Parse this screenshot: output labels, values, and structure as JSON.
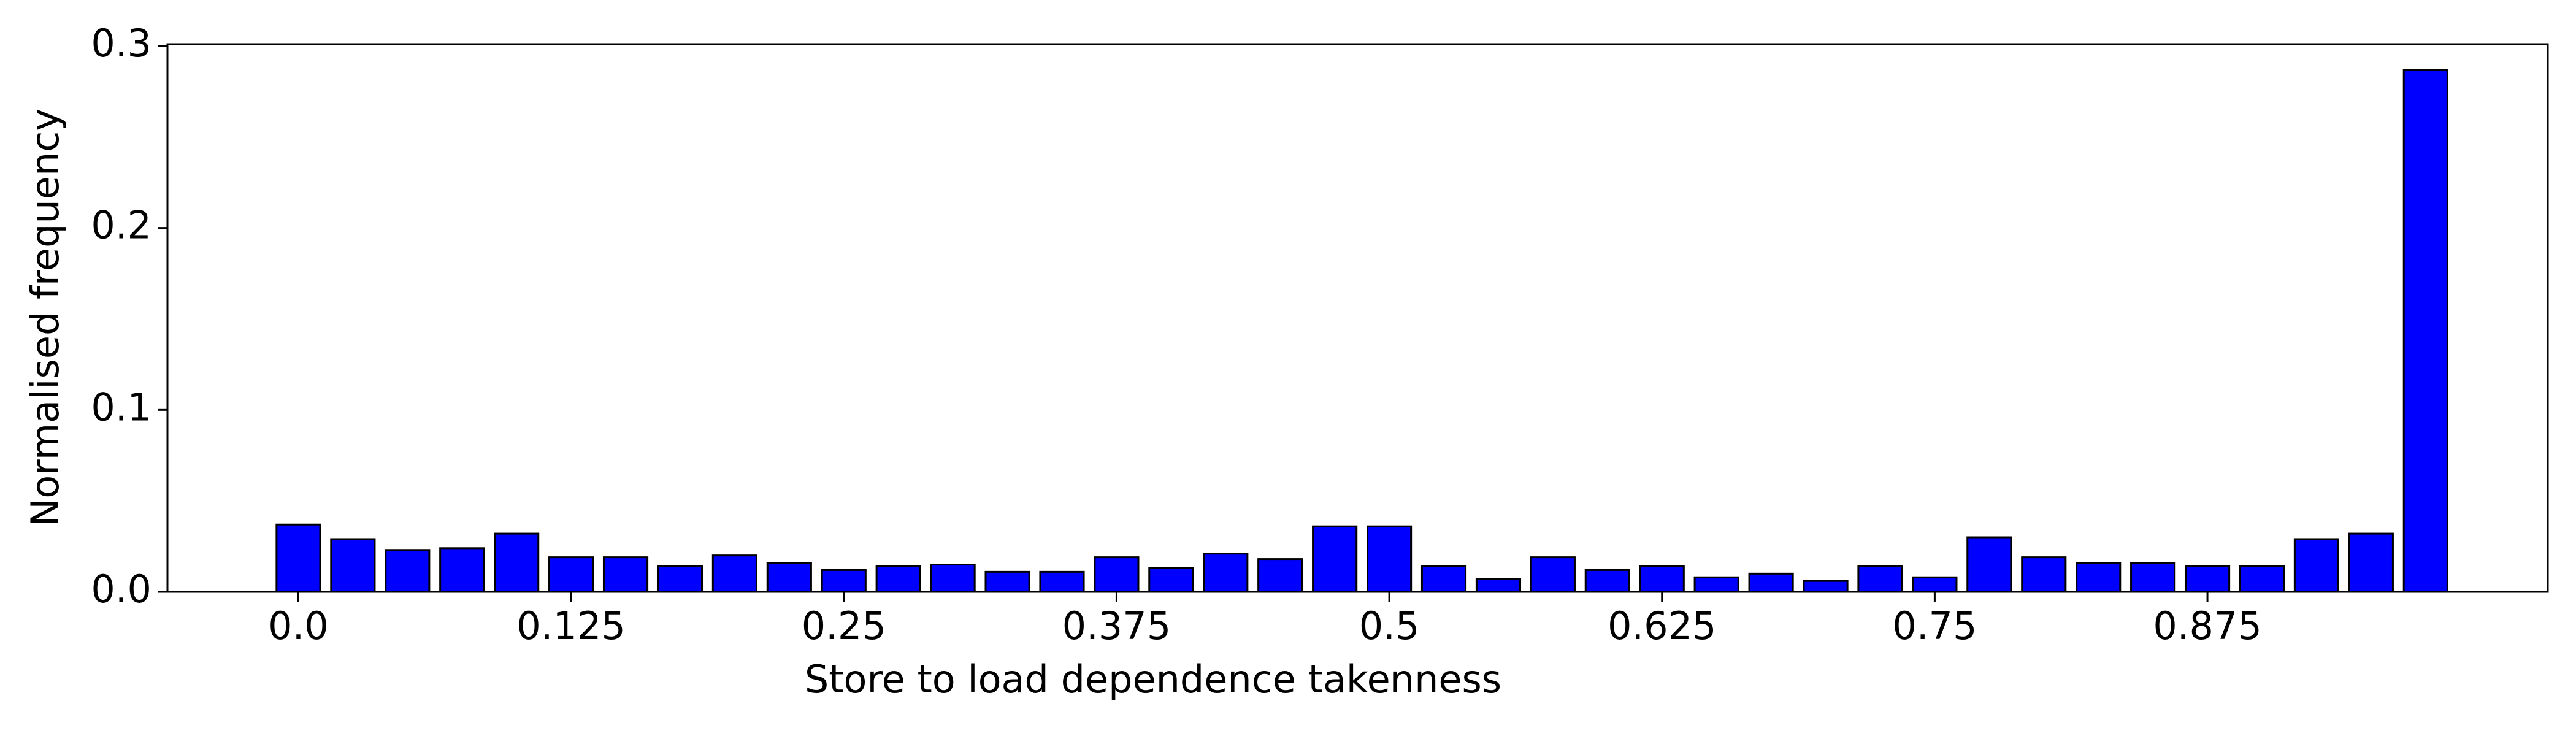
{
  "chart_data": {
    "type": "bar",
    "x_label": "Store to load dependence takenness",
    "y_label": "Normalised frequency",
    "x": [
      0,
      0.025,
      0.05,
      0.075,
      0.1,
      0.125,
      0.15,
      0.175,
      0.2,
      0.225,
      0.25,
      0.275,
      0.3,
      0.325,
      0.35,
      0.375,
      0.4,
      0.425,
      0.45,
      0.475,
      0.5,
      0.525,
      0.55,
      0.575,
      0.6,
      0.625,
      0.65,
      0.675,
      0.7,
      0.725,
      0.75,
      0.775,
      0.8,
      0.825,
      0.85,
      0.875,
      0.9,
      0.925,
      0.95,
      0.975
    ],
    "values": [
      0.037,
      0.029,
      0.023,
      0.024,
      0.032,
      0.019,
      0.019,
      0.014,
      0.02,
      0.016,
      0.012,
      0.014,
      0.015,
      0.011,
      0.011,
      0.019,
      0.013,
      0.021,
      0.018,
      0.036,
      0.036,
      0.014,
      0.007,
      0.019,
      0.012,
      0.014,
      0.008,
      0.01,
      0.006,
      0.014,
      0.008,
      0.03,
      0.019,
      0.016,
      0.016,
      0.014,
      0.014,
      0.029,
      0.032,
      0.287
    ],
    "color": "#0000ff",
    "edgecolor": "#000000",
    "bar_width": 0.02,
    "xlim": [
      -0.06,
      1.031
    ],
    "ylim": [
      0,
      0.301
    ],
    "xticks": [
      {
        "value": 0,
        "label": "0.0"
      },
      0.125,
      0.25,
      0.375,
      0.5,
      0.625,
      0.75,
      0.875
    ],
    "yticks": [
      {
        "value": 0,
        "label": "0.0"
      },
      0.1,
      0.2,
      0.3
    ]
  }
}
